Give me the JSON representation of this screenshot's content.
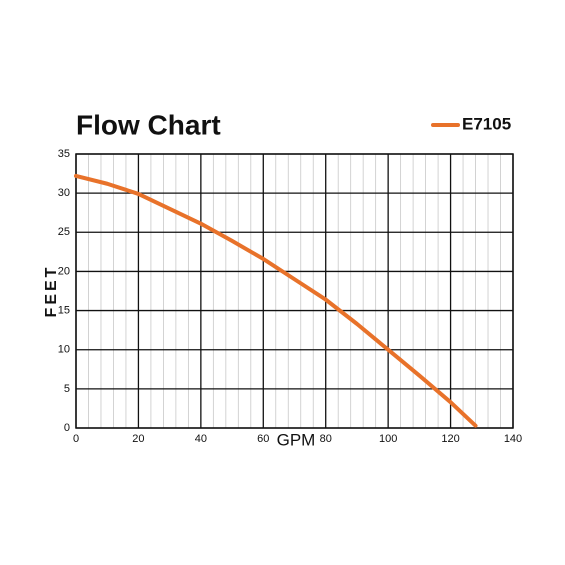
{
  "chart_data": {
    "type": "line",
    "title": "Flow Chart",
    "x_label": "GPM",
    "y_label": "FEET",
    "series": [
      {
        "name": "E7105",
        "color": "#e8722a",
        "x": [
          0,
          10,
          20,
          30,
          40,
          50,
          60,
          70,
          80,
          90,
          100,
          110,
          120,
          128
        ],
        "values": [
          32.2,
          31.2,
          29.9,
          28.0,
          26.1,
          23.9,
          21.6,
          19.0,
          16.4,
          13.3,
          10,
          6.7,
          3.3,
          0.3
        ]
      }
    ],
    "xlim": [
      0,
      140
    ],
    "xticks": [
      0,
      20,
      40,
      60,
      80,
      100,
      120,
      140
    ],
    "ylim": [
      0,
      35
    ],
    "yticks": [
      0,
      5,
      10,
      15,
      20,
      25,
      30,
      35
    ],
    "grid": true,
    "minor_grid": true,
    "legend": "top-right"
  }
}
